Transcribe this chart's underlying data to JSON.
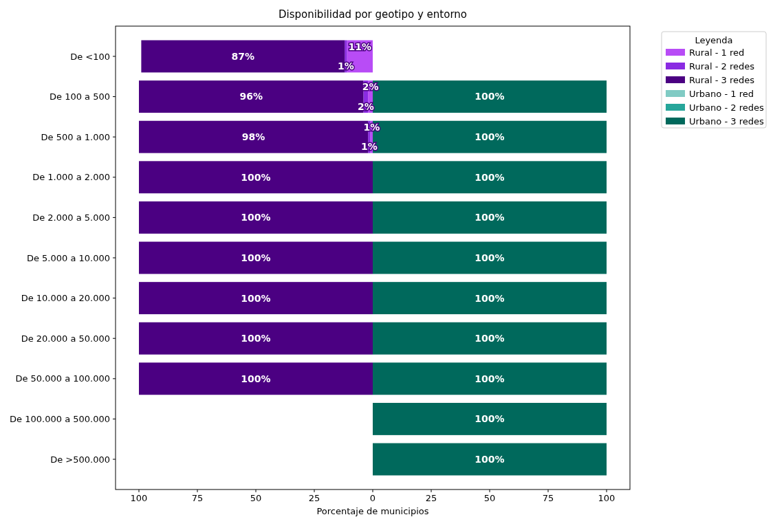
{
  "chart_data": {
    "type": "bar",
    "orientation": "horizontal",
    "title": "Disponibilidad por geotipo y entorno",
    "xlabel": "Porcentaje de municipios",
    "legend_title": "Leyenda",
    "legend": "right",
    "categories": [
      "De <100",
      "De 100 a 500",
      "De 500 a 1.000",
      "De 1.000 a 2.000",
      "De 2.000 a 5.000",
      "De 5.000 a 10.000",
      "De 10.000 a 20.000",
      "De 20.000 a 50.000",
      "De 50.000 a 100.000",
      "De 100.000 a 500.000",
      "De >500.000"
    ],
    "xlim": [
      -110,
      110
    ],
    "xticks": [
      {
        "value": -100,
        "label": "100"
      },
      {
        "value": -75,
        "label": "75"
      },
      {
        "value": -50,
        "label": "50"
      },
      {
        "value": -25,
        "label": "25"
      },
      0,
      25,
      50,
      75,
      100
    ],
    "series": [
      {
        "name": "Rural - 1 red",
        "color": "#b84cf6",
        "values": [
          11,
          2,
          1,
          null,
          null,
          null,
          null,
          null,
          null,
          null,
          null
        ],
        "base": [
          -11,
          -2,
          -1,
          null,
          null,
          null,
          null,
          null,
          null,
          null,
          null
        ],
        "value_labels": [
          "11%",
          "2%",
          "1%",
          null,
          null,
          null,
          null,
          null,
          null,
          null,
          null
        ]
      },
      {
        "name": "Rural - 2 redes",
        "color": "#8a2be2",
        "values": [
          1,
          2,
          1,
          null,
          null,
          null,
          null,
          null,
          null,
          null,
          null
        ],
        "base": [
          -12,
          -4,
          -2,
          null,
          null,
          null,
          null,
          null,
          null,
          null,
          null
        ],
        "value_labels": [
          "1%",
          "2%",
          "1%",
          null,
          null,
          null,
          null,
          null,
          null,
          null,
          null
        ]
      },
      {
        "name": "Rural - 3 redes",
        "color": "#4b0082",
        "values": [
          87,
          96,
          98,
          100,
          100,
          100,
          100,
          100,
          100,
          null,
          null
        ],
        "base": [
          -99,
          -100,
          -100,
          -100,
          -100,
          -100,
          -100,
          -100,
          -100,
          null,
          null
        ],
        "value_labels": [
          "87%",
          "96%",
          "98%",
          "100%",
          "100%",
          "100%",
          "100%",
          "100%",
          "100%",
          null,
          null
        ]
      },
      {
        "name": "Urbano - 1 red",
        "color": "#80cbc4",
        "values": [
          null,
          null,
          null,
          null,
          null,
          null,
          null,
          null,
          null,
          null,
          null
        ]
      },
      {
        "name": "Urbano - 2 redes",
        "color": "#26a69a",
        "values": [
          null,
          null,
          null,
          null,
          null,
          null,
          null,
          null,
          null,
          null,
          null
        ]
      },
      {
        "name": "Urbano - 3 redes",
        "color": "#00695c",
        "values": [
          null,
          100,
          100,
          100,
          100,
          100,
          100,
          100,
          100,
          100,
          100
        ],
        "value_labels": [
          null,
          "100%",
          "100%",
          "100%",
          "100%",
          "100%",
          "100%",
          "100%",
          "100%",
          "100%",
          "100%"
        ]
      }
    ]
  }
}
